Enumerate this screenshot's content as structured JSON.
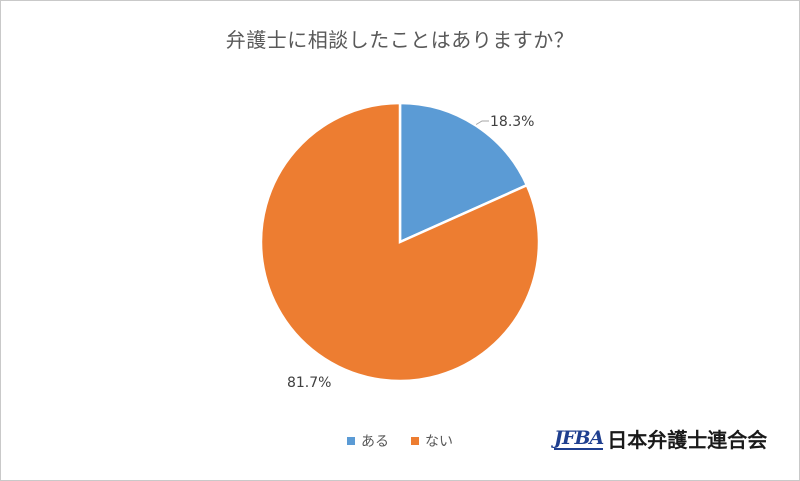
{
  "chart_data": {
    "type": "pie",
    "title": "弁護士に相談したことはありますか？",
    "categories": [
      "ある",
      "ない"
    ],
    "values": [
      18.3,
      81.7
    ],
    "labels": [
      "18.3%",
      "81.7%"
    ],
    "colors": [
      "#5b9bd5",
      "#ed7d31"
    ],
    "start_angle_deg": 0,
    "direction": "clockwise",
    "legend_position": "bottom"
  },
  "logo": {
    "mark": "JFBA",
    "name": "日本弁護士連合会"
  }
}
